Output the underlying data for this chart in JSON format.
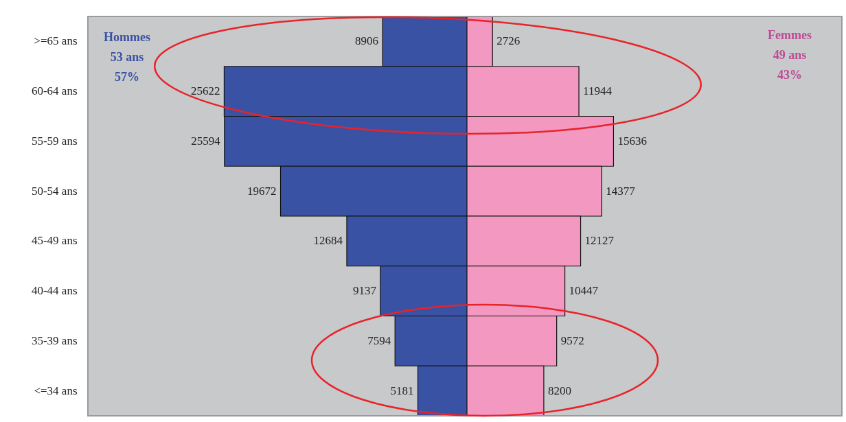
{
  "chart_data": [
    {
      "type": "bar",
      "orientation": "horizontal",
      "legend": false,
      "data_labels": true,
      "tick_labels": "y",
      "categories": [
        ">=65 ans",
        "60-64 ans",
        "55-59 ans",
        "50-54 ans",
        "45-49 ans",
        "40-44 ans",
        "35-39 ans",
        "<=34 ans"
      ],
      "xlim": [
        40000,
        0
      ],
      "series": [
        {
          "name": "Hommes",
          "color": "#3a52a3",
          "values": [
            8906,
            25622,
            25594,
            19672,
            12684,
            9137,
            7594,
            5181
          ]
        }
      ],
      "annotations": [
        "53 ans",
        "57%"
      ]
    },
    {
      "type": "bar",
      "orientation": "horizontal",
      "legend": false,
      "data_labels": true,
      "tick_labels": false,
      "categories": [
        null,
        null,
        null,
        null,
        null,
        null,
        null,
        null
      ],
      "xlim": [
        0,
        40000
      ],
      "series": [
        {
          "name": "Femmes",
          "color": "#f398c0",
          "values": [
            2726,
            11944,
            15636,
            14377,
            12127,
            10447,
            9572,
            8200
          ]
        }
      ],
      "annotations": [
        "49 ans",
        "43%"
      ]
    }
  ]
}
